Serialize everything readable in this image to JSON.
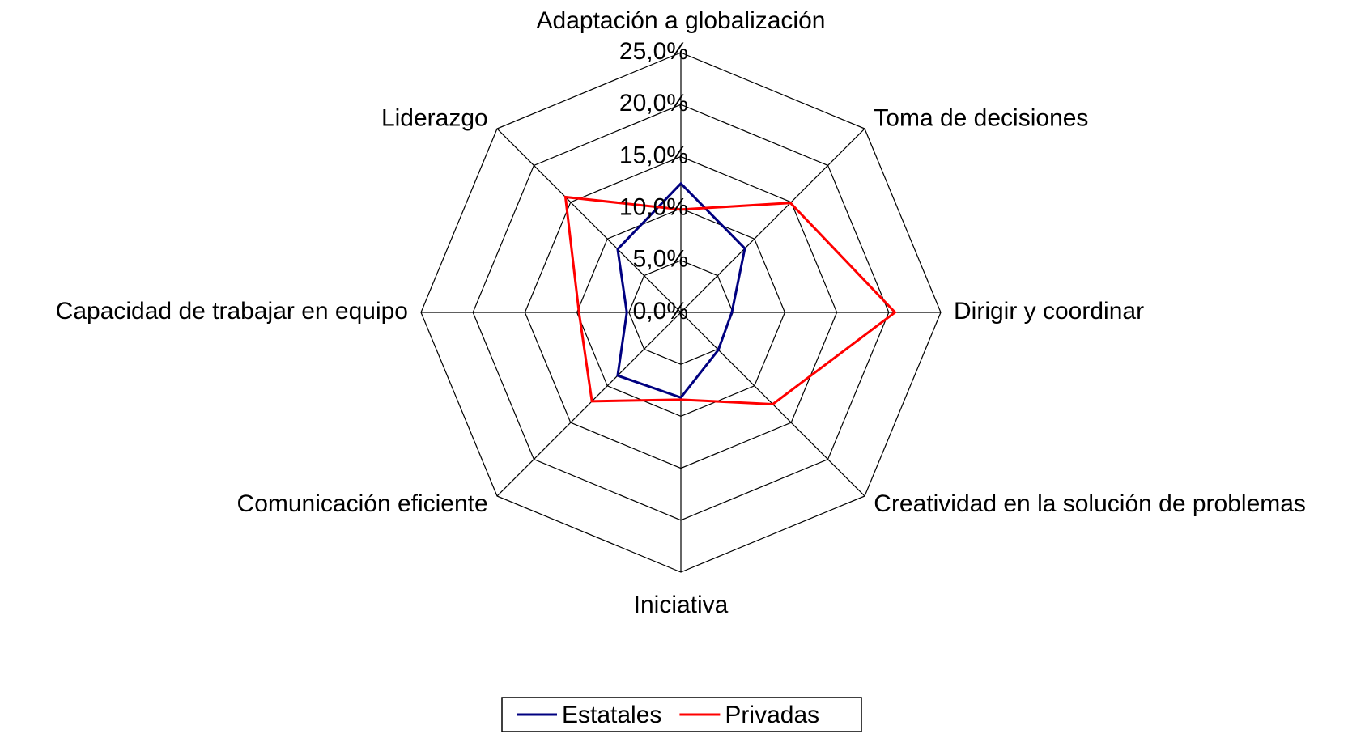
{
  "chart_data": {
    "type": "radar",
    "categories": [
      "Adaptación a globalización",
      "Toma de decisiones",
      "Dirigir y coordinar",
      "Creatividad en la solución de problemas",
      "Iniciativa",
      "Comunicación eficiente",
      "Capacidad de trabajar en equipo",
      "Liderazgo"
    ],
    "series": [
      {
        "name": "Estatales",
        "color": "#000080",
        "values": [
          12.4,
          8.7,
          4.9,
          5.1,
          8.2,
          8.6,
          5.2,
          8.6
        ]
      },
      {
        "name": "Privadas",
        "color": "#ff0000",
        "values": [
          9.9,
          14.9,
          20.6,
          12.5,
          8.4,
          12.1,
          9.8,
          15.7
        ]
      }
    ],
    "ylim": [
      0,
      25
    ],
    "yticks": [
      {
        "value": 0,
        "label": "0,0%"
      },
      {
        "value": 5,
        "label": "5,0%"
      },
      {
        "value": 10,
        "label": "10,0%"
      },
      {
        "value": 15,
        "label": "15,0%"
      },
      {
        "value": 20,
        "label": "20,0%"
      },
      {
        "value": 25,
        "label": "25,0%"
      }
    ],
    "grid": true,
    "legend": "bottom"
  }
}
